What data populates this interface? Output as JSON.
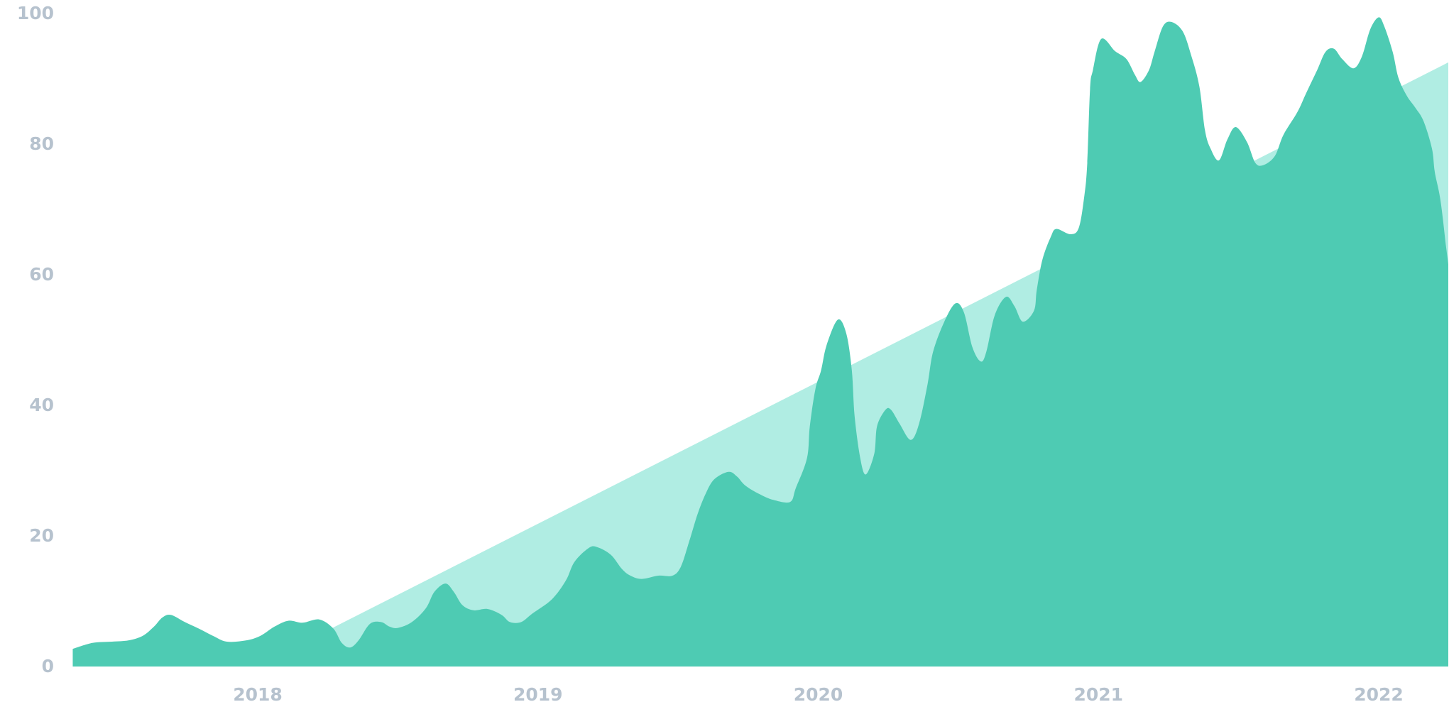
{
  "chart_data": {
    "type": "area",
    "title": "",
    "xlabel": "",
    "ylabel": "",
    "xlim": [
      2017.34,
      2022.25
    ],
    "ylim": [
      0,
      100
    ],
    "grid": false,
    "x_ticks": [
      "2018",
      "2019",
      "2020",
      "2021",
      "2022"
    ],
    "x_tick_values": [
      2018,
      2019,
      2020,
      2021,
      2022
    ],
    "y_ticks": [
      "0",
      "20",
      "40",
      "60",
      "80",
      "100"
    ],
    "y_tick_values": [
      0,
      20,
      40,
      60,
      80,
      100
    ],
    "colors": {
      "series": "#4ecbb3",
      "trend": "#b0ede3",
      "tick_text": "#b6c2ce"
    },
    "series": [
      {
        "points": [
          [
            2017.34,
            2.6
          ],
          [
            2017.41,
            3.5
          ],
          [
            2017.48,
            3.7
          ],
          [
            2017.54,
            3.9
          ],
          [
            2017.59,
            4.6
          ],
          [
            2017.63,
            6.0
          ],
          [
            2017.66,
            7.4
          ],
          [
            2017.69,
            7.8
          ],
          [
            2017.74,
            6.7
          ],
          [
            2017.79,
            5.7
          ],
          [
            2017.84,
            4.6
          ],
          [
            2017.89,
            3.7
          ],
          [
            2017.96,
            3.9
          ],
          [
            2018.01,
            4.6
          ],
          [
            2018.06,
            6.0
          ],
          [
            2018.11,
            6.9
          ],
          [
            2018.16,
            6.6
          ],
          [
            2018.22,
            7.1
          ],
          [
            2018.27,
            5.7
          ],
          [
            2018.3,
            3.5
          ],
          [
            2018.33,
            2.8
          ],
          [
            2018.36,
            3.9
          ],
          [
            2018.4,
            6.4
          ],
          [
            2018.44,
            6.7
          ],
          [
            2018.47,
            6.0
          ],
          [
            2018.5,
            5.8
          ],
          [
            2018.55,
            6.7
          ],
          [
            2018.6,
            8.8
          ],
          [
            2018.63,
            11.3
          ],
          [
            2018.67,
            12.6
          ],
          [
            2018.7,
            11.3
          ],
          [
            2018.73,
            9.3
          ],
          [
            2018.77,
            8.5
          ],
          [
            2018.82,
            8.7
          ],
          [
            2018.87,
            7.8
          ],
          [
            2018.9,
            6.7
          ],
          [
            2018.94,
            6.7
          ],
          [
            2018.98,
            8.0
          ],
          [
            2019.05,
            10.2
          ],
          [
            2019.1,
            13.1
          ],
          [
            2019.13,
            15.9
          ],
          [
            2019.18,
            18.0
          ],
          [
            2019.21,
            18.2
          ],
          [
            2019.26,
            17.0
          ],
          [
            2019.3,
            14.8
          ],
          [
            2019.33,
            13.8
          ],
          [
            2019.37,
            13.3
          ],
          [
            2019.43,
            13.8
          ],
          [
            2019.48,
            13.8
          ],
          [
            2019.51,
            15.2
          ],
          [
            2019.54,
            19.1
          ],
          [
            2019.57,
            23.3
          ],
          [
            2019.6,
            26.5
          ],
          [
            2019.63,
            28.6
          ],
          [
            2019.68,
            29.7
          ],
          [
            2019.71,
            29.0
          ],
          [
            2019.74,
            27.6
          ],
          [
            2019.79,
            26.3
          ],
          [
            2019.84,
            25.4
          ],
          [
            2019.9,
            25.1
          ],
          [
            2019.92,
            27.2
          ],
          [
            2019.96,
            31.8
          ],
          [
            2019.97,
            36.7
          ],
          [
            2019.99,
            42.4
          ],
          [
            2020.01,
            45.2
          ],
          [
            2020.03,
            49.1
          ],
          [
            2020.07,
            53.0
          ],
          [
            2020.1,
            50.9
          ],
          [
            2020.12,
            45.2
          ],
          [
            2020.13,
            38.2
          ],
          [
            2020.15,
            31.8
          ],
          [
            2020.17,
            29.3
          ],
          [
            2020.2,
            32.5
          ],
          [
            2020.21,
            36.7
          ],
          [
            2020.24,
            39.2
          ],
          [
            2020.26,
            39.2
          ],
          [
            2020.29,
            37.1
          ],
          [
            2020.33,
            34.6
          ],
          [
            2020.36,
            37.1
          ],
          [
            2020.39,
            43.1
          ],
          [
            2020.41,
            48.1
          ],
          [
            2020.45,
            52.7
          ],
          [
            2020.49,
            55.5
          ],
          [
            2020.52,
            54.1
          ],
          [
            2020.55,
            48.8
          ],
          [
            2020.58,
            46.6
          ],
          [
            2020.6,
            48.1
          ],
          [
            2020.63,
            53.7
          ],
          [
            2020.67,
            56.5
          ],
          [
            2020.7,
            55.1
          ],
          [
            2020.73,
            52.7
          ],
          [
            2020.77,
            54.4
          ],
          [
            2020.78,
            57.6
          ],
          [
            2020.8,
            62.2
          ],
          [
            2020.83,
            65.7
          ],
          [
            2020.85,
            66.9
          ],
          [
            2020.9,
            66.1
          ],
          [
            2020.93,
            67.1
          ],
          [
            2020.95,
            72.1
          ],
          [
            2020.96,
            77.0
          ],
          [
            2020.97,
            88.3
          ],
          [
            2020.98,
            91.2
          ],
          [
            2021.01,
            96.0
          ],
          [
            2021.06,
            94.1
          ],
          [
            2021.1,
            92.9
          ],
          [
            2021.13,
            90.5
          ],
          [
            2021.15,
            89.4
          ],
          [
            2021.18,
            91.2
          ],
          [
            2021.2,
            94.0
          ],
          [
            2021.23,
            97.9
          ],
          [
            2021.26,
            98.6
          ],
          [
            2021.3,
            97.2
          ],
          [
            2021.33,
            93.6
          ],
          [
            2021.36,
            88.7
          ],
          [
            2021.38,
            82.0
          ],
          [
            2021.4,
            79.2
          ],
          [
            2021.43,
            77.4
          ],
          [
            2021.46,
            80.6
          ],
          [
            2021.49,
            82.5
          ],
          [
            2021.53,
            80.2
          ],
          [
            2021.56,
            77.0
          ],
          [
            2021.59,
            76.7
          ],
          [
            2021.63,
            78.1
          ],
          [
            2021.66,
            81.3
          ],
          [
            2021.71,
            84.8
          ],
          [
            2021.74,
            87.6
          ],
          [
            2021.78,
            91.2
          ],
          [
            2021.81,
            94.0
          ],
          [
            2021.84,
            94.5
          ],
          [
            2021.87,
            92.9
          ],
          [
            2021.91,
            91.5
          ],
          [
            2021.94,
            93.3
          ],
          [
            2021.97,
            97.5
          ],
          [
            2022.0,
            99.3
          ],
          [
            2022.02,
            97.9
          ],
          [
            2022.05,
            94.0
          ],
          [
            2022.07,
            90.1
          ],
          [
            2022.1,
            87.3
          ],
          [
            2022.13,
            85.5
          ],
          [
            2022.16,
            83.4
          ],
          [
            2022.19,
            79.2
          ],
          [
            2022.2,
            75.6
          ],
          [
            2022.22,
            71.4
          ],
          [
            2022.24,
            64.3
          ],
          [
            2022.25,
            61.5
          ]
        ]
      },
      {
        "kind": "trend",
        "points": [
          [
            2018.0,
            0
          ],
          [
            2022.25,
            92.4
          ]
        ]
      }
    ]
  }
}
